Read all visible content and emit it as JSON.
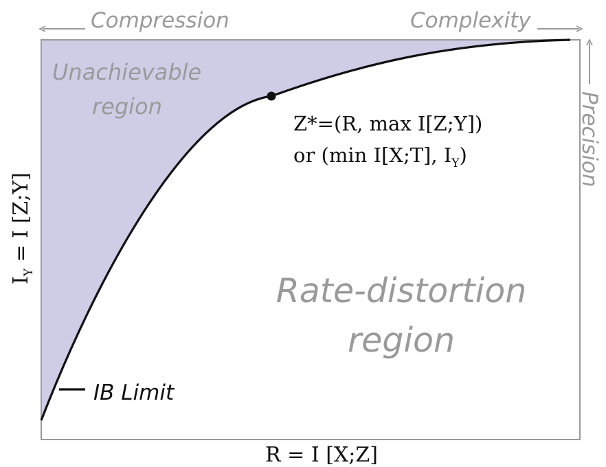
{
  "axes": {
    "x_label": "R = I [X;Z]",
    "y_label_main": "I",
    "y_label_sub": "Y",
    "y_label_rest": " = I [Z;Y]"
  },
  "arrows": {
    "compression": "Compression",
    "complexity": "Complexity",
    "precision": "Precision"
  },
  "regions": {
    "unachievable_line1": "Unachievable",
    "unachievable_line2": "region",
    "rate_line1": "Rate-distortion",
    "rate_line2": "region"
  },
  "point": {
    "line1": "Z*=(R, max I[Z;Y])",
    "line2_main": "or (min I[X;T], I",
    "line2_sub": "Y",
    "line2_end": ")"
  },
  "legend": {
    "label": "IB Limit"
  },
  "colors": {
    "unachievable_fill": "#cfcce6",
    "curve": "#111111",
    "axis": "#9a9a9a",
    "annotation": "#9a9a9a"
  }
}
